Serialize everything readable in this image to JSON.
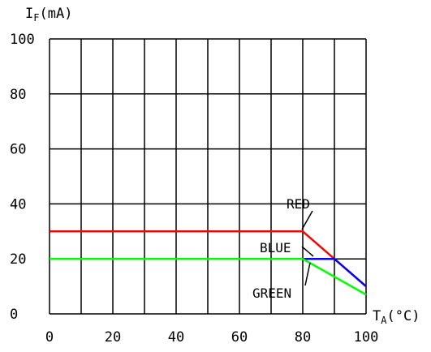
{
  "chart_data": {
    "type": "line",
    "ylabel_main": "I",
    "ylabel_sub": "F",
    "ylabel_unit": "(mA)",
    "xlabel_main": "T",
    "xlabel_sub": "A",
    "xlabel_unit": "(°C)",
    "xlim": [
      0,
      100
    ],
    "ylim": [
      0,
      100
    ],
    "x_ticks": [
      "0",
      "20",
      "40",
      "60",
      "80",
      "100"
    ],
    "y_ticks": [
      "0",
      "20",
      "40",
      "60",
      "80",
      "100"
    ],
    "grid": true,
    "series": [
      {
        "name": "RED",
        "color": "#ff0000",
        "x": [
          0,
          80,
          100
        ],
        "y": [
          30,
          30,
          10
        ]
      },
      {
        "name": "BLUE",
        "color": "#0000ff",
        "x": [
          0,
          80,
          90,
          100
        ],
        "y": [
          20,
          20,
          20,
          10
        ]
      },
      {
        "name": "GREEN",
        "color": "#00ff00",
        "x": [
          0,
          80,
          100
        ],
        "y": [
          20,
          20,
          7
        ]
      }
    ]
  }
}
